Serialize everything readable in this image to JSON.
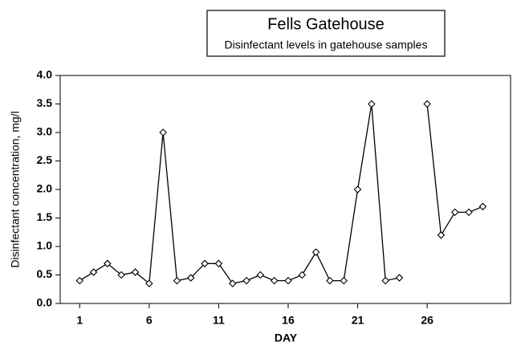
{
  "chart_data": {
    "type": "line",
    "title": "Fells Gatehouse",
    "subtitle": "Disinfectant levels in gatehouse samples",
    "x_label": "DAY",
    "y_label": "Disinfectant concentration, mg/l",
    "x": [
      1,
      2,
      3,
      4,
      5,
      6,
      7,
      8,
      9,
      10,
      11,
      12,
      13,
      14,
      15,
      16,
      17,
      18,
      19,
      20,
      21,
      22,
      23,
      24,
      25,
      26,
      27,
      28,
      29,
      30
    ],
    "series": [
      {
        "name": "Disinfectant",
        "color": "#000000",
        "values": [
          0.4,
          0.55,
          0.7,
          0.5,
          0.55,
          0.35,
          3.0,
          0.4,
          0.45,
          0.7,
          0.7,
          0.35,
          0.4,
          0.5,
          0.4,
          0.4,
          0.5,
          0.9,
          0.4,
          0.4,
          2.0,
          3.5,
          0.4,
          0.45,
          null,
          3.5,
          1.2,
          1.6,
          1.6,
          1.7
        ]
      }
    ],
    "xlim": [
      -0.4,
      32
    ],
    "xticks": [
      1,
      6,
      11,
      16,
      21,
      26
    ],
    "ylim": [
      0,
      4
    ],
    "yticks": [
      {
        "value": 0,
        "label": "0.0"
      },
      {
        "value": 0.5,
        "label": "0.5"
      },
      {
        "value": 1,
        "label": "1.0"
      },
      {
        "value": 1.5,
        "label": "1.5"
      },
      {
        "value": 2,
        "label": "2.0"
      },
      {
        "value": 2.5,
        "label": "2.5"
      },
      {
        "value": 3,
        "label": "3.0"
      },
      {
        "value": 3.5,
        "label": "3.5"
      },
      {
        "value": 4,
        "label": "4.0"
      }
    ],
    "grid": false
  }
}
